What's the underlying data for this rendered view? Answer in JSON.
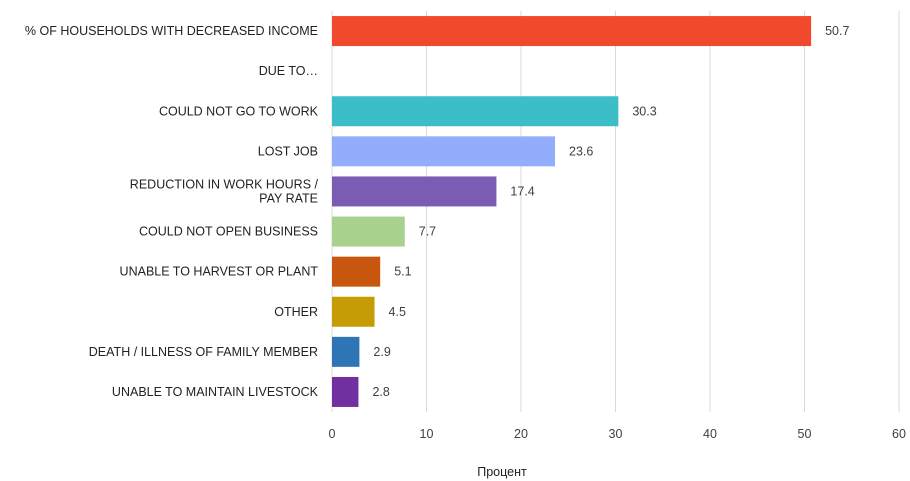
{
  "chart_data": {
    "type": "bar",
    "orientation": "horizontal",
    "title": "",
    "xlabel": "Процент",
    "ylabel": "",
    "xlim": [
      0,
      60
    ],
    "x_ticks": [
      "0",
      "10",
      "20",
      "30",
      "40",
      "50",
      "60"
    ],
    "grid": true,
    "legend": "none",
    "categories": [
      "% OF HOUSEHOLDS WITH DECREASED INCOME",
      "DUE TO…",
      "COULD NOT GO TO WORK",
      "LOST JOB",
      "REDUCTION IN WORK HOURS / PAY RATE",
      "COULD NOT OPEN BUSINESS",
      "UNABLE TO HARVEST OR PLANT",
      "OTHER",
      "DEATH / ILLNESS OF FAMILY MEMBER",
      "UNABLE TO MAINTAIN LIVESTOCK"
    ],
    "category_lines": [
      [
        "% OF HOUSEHOLDS WITH DECREASED INCOME"
      ],
      [
        "DUE TO…"
      ],
      [
        "COULD NOT GO TO WORK"
      ],
      [
        "LOST JOB"
      ],
      [
        "REDUCTION IN WORK HOURS /",
        "PAY RATE"
      ],
      [
        "COULD NOT OPEN BUSINESS"
      ],
      [
        "UNABLE TO HARVEST OR PLANT"
      ],
      [
        "OTHER"
      ],
      [
        "DEATH / ILLNESS OF FAMILY MEMBER"
      ],
      [
        "UNABLE TO MAINTAIN LIVESTOCK"
      ]
    ],
    "values": [
      50.7,
      null,
      30.3,
      23.6,
      17.4,
      7.7,
      5.1,
      4.5,
      2.9,
      2.8
    ],
    "value_labels": [
      "50.7",
      "",
      "30.3",
      "23.6",
      "17.4",
      "7.7",
      "5.1",
      "4.5",
      "2.9",
      "2.8"
    ],
    "colors": [
      "#f0492c",
      "",
      "#3cbdc8",
      "#91adfb",
      "#7a5db3",
      "#a8d18d",
      "#c9560f",
      "#c59b06",
      "#2e75b6",
      "#7030a0"
    ]
  }
}
